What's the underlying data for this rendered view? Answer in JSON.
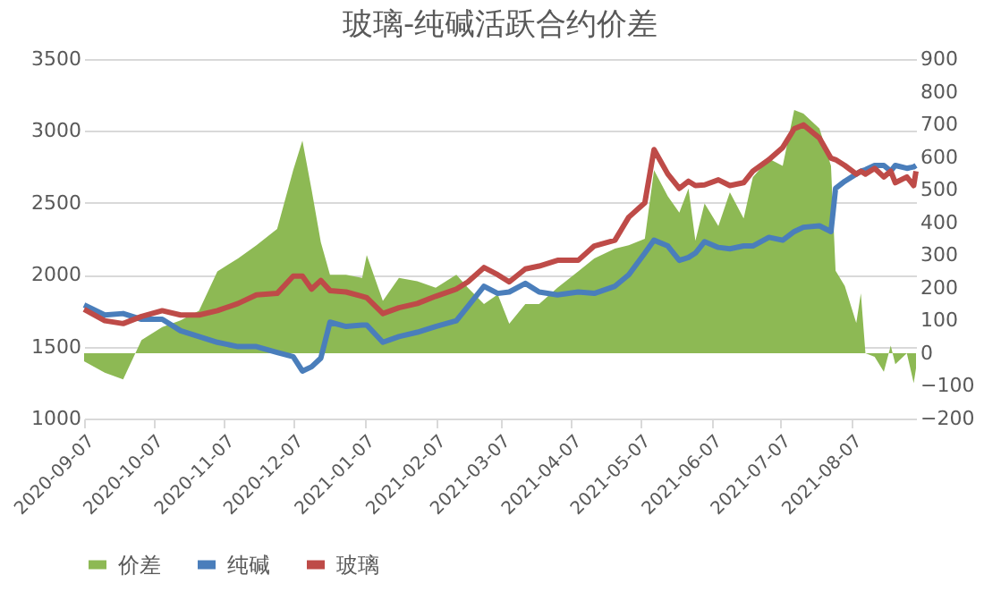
{
  "chart_data": {
    "type": "line",
    "title": "玻璃-纯碱活跃合约价差",
    "x": [
      "2020-09-07",
      "2020-09-16",
      "2020-09-24",
      "2020-10-02",
      "2020-10-11",
      "2020-10-19",
      "2020-10-27",
      "2020-11-04",
      "2020-11-13",
      "2020-11-21",
      "2020-11-30",
      "2020-12-07",
      "2020-12-11",
      "2020-12-15",
      "2020-12-19",
      "2020-12-23",
      "2020-12-30",
      "2021-01-06",
      "2021-01-08",
      "2021-01-15",
      "2021-01-22",
      "2021-01-30",
      "2021-02-07",
      "2021-02-16",
      "2021-02-21",
      "2021-02-28",
      "2021-03-06",
      "2021-03-11",
      "2021-03-18",
      "2021-03-24",
      "2021-04-01",
      "2021-04-10",
      "2021-04-17",
      "2021-04-26",
      "2021-05-02",
      "2021-05-09",
      "2021-05-13",
      "2021-05-19",
      "2021-05-24",
      "2021-05-28",
      "2021-05-31",
      "2021-06-04",
      "2021-06-10",
      "2021-06-15",
      "2021-06-21",
      "2021-06-25",
      "2021-07-02",
      "2021-07-08",
      "2021-07-13",
      "2021-07-17",
      "2021-07-24",
      "2021-07-29",
      "2021-07-31",
      "2021-08-04",
      "2021-08-09",
      "2021-08-11",
      "2021-08-13",
      "2021-08-17",
      "2021-08-21",
      "2021-08-24",
      "2021-08-26",
      "2021-08-31",
      "2021-09-03",
      "2021-09-04"
    ],
    "series": [
      {
        "name": "价差",
        "type": "area",
        "axis": "y2",
        "color": "#8db954",
        "values": [
          -25,
          -60,
          -80,
          40,
          80,
          100,
          130,
          250,
          290,
          330,
          380,
          560,
          650,
          500,
          340,
          240,
          240,
          230,
          300,
          160,
          230,
          220,
          200,
          240,
          200,
          150,
          180,
          90,
          150,
          150,
          200,
          250,
          290,
          320,
          330,
          350,
          560,
          480,
          430,
          504,
          344,
          458,
          389,
          492,
          412,
          538,
          595,
          573,
          744,
          733,
          687,
          573,
          252,
          206,
          92,
          183,
          0,
          -11,
          -57,
          23,
          -34,
          0,
          -92,
          -46
        ]
      },
      {
        "name": "纯碱",
        "color": "#4a7ebb",
        "values": [
          1790,
          1720,
          1730,
          1690,
          1690,
          1610,
          1570,
          1530,
          1500,
          1500,
          1460,
          1430,
          1330,
          1360,
          1420,
          1670,
          1640,
          1650,
          1650,
          1530,
          1570,
          1600,
          1640,
          1680,
          1780,
          1920,
          1870,
          1880,
          1940,
          1880,
          1860,
          1880,
          1870,
          1920,
          2000,
          2150,
          2240,
          2200,
          2100,
          2120,
          2150,
          2230,
          2190,
          2180,
          2200,
          2200,
          2260,
          2240,
          2300,
          2330,
          2340,
          2300,
          2600,
          2650,
          2700,
          2720,
          2730,
          2760,
          2760,
          2720,
          2760,
          2740,
          2750,
          2760
        ]
      },
      {
        "name": "玻璃",
        "color": "#be4b48",
        "values": [
          1760,
          1680,
          1660,
          1710,
          1750,
          1720,
          1720,
          1750,
          1800,
          1860,
          1870,
          1990,
          1990,
          1900,
          1960,
          1890,
          1880,
          1850,
          1840,
          1730,
          1770,
          1800,
          1850,
          1900,
          1950,
          2050,
          2000,
          1950,
          2040,
          2060,
          2100,
          2100,
          2200,
          2240,
          2400,
          2500,
          2870,
          2700,
          2600,
          2650,
          2620,
          2625,
          2660,
          2620,
          2640,
          2720,
          2800,
          2885,
          3015,
          3042,
          2950,
          2810,
          2800,
          2760,
          2700,
          2720,
          2700,
          2740,
          2680,
          2720,
          2640,
          2680,
          2620,
          2720
        ]
      }
    ],
    "xlim": [
      "2020-09-07",
      "2021-09-04"
    ],
    "xticks": [
      "2020-09-07",
      "2020-10-07",
      "2020-11-07",
      "2020-12-07",
      "2021-01-07",
      "2021-02-07",
      "2021-03-07",
      "2021-04-07",
      "2021-05-07",
      "2021-06-07",
      "2021-07-07",
      "2021-08-07"
    ],
    "ylim": [
      1000,
      3500
    ],
    "yticks": [
      1000,
      1500,
      2000,
      2500,
      3000,
      3500
    ],
    "y2lim": [
      -200,
      900
    ],
    "y2ticks": [
      -200,
      -100,
      0,
      100,
      200,
      300,
      400,
      500,
      600,
      700,
      800,
      900
    ],
    "grid": "y",
    "legend": "bottom"
  }
}
